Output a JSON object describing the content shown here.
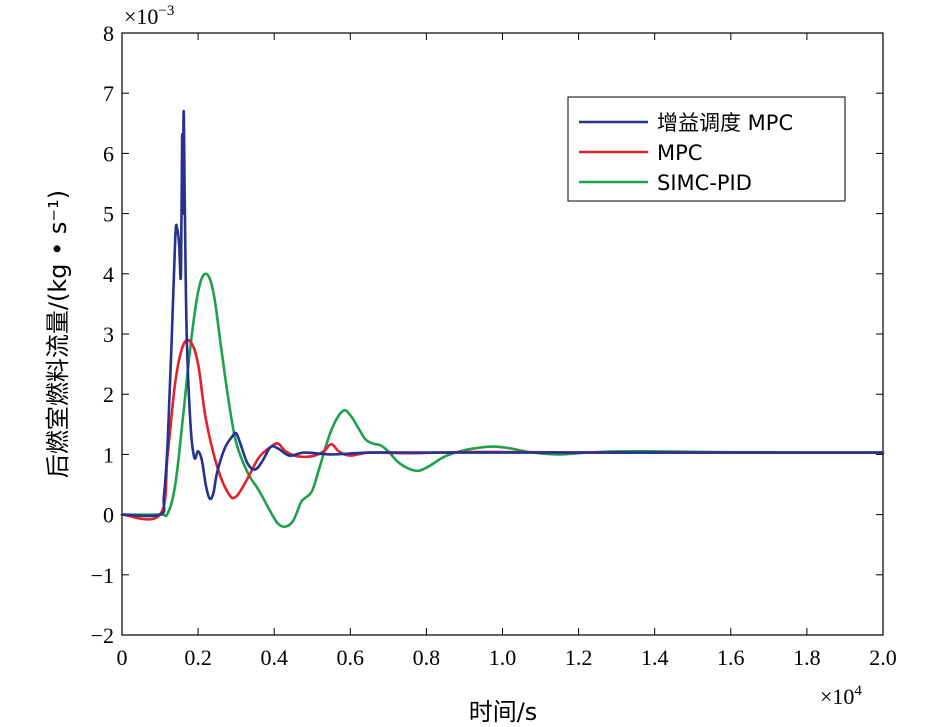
{
  "chart_data": {
    "type": "line",
    "xlabel": "时间/s",
    "ylabel": "后燃室燃料流量/(kg • s⁻¹)",
    "x_multiplier": {
      "base": "×10",
      "exp": "4"
    },
    "y_multiplier": {
      "base": "×10",
      "exp": "−3"
    },
    "xlim": [
      0,
      2.0
    ],
    "ylim": [
      -2,
      8
    ],
    "x_ticks": [
      "0",
      "0.2",
      "0.4",
      "0.6",
      "0.8",
      "1.0",
      "1.2",
      "1.4",
      "1.6",
      "1.8",
      "2.0"
    ],
    "y_ticks": [
      "−2",
      "−1",
      "0",
      "1",
      "2",
      "3",
      "4",
      "5",
      "6",
      "7",
      "8"
    ],
    "legend_position": "top-right",
    "grid": false,
    "series": [
      {
        "name": "增益调度 MPC",
        "color": "#27318f",
        "points": [
          [
            0,
            0
          ],
          [
            0.1,
            0
          ],
          [
            0.11,
            0.3
          ],
          [
            0.12,
            1.2
          ],
          [
            0.13,
            2.8
          ],
          [
            0.14,
            4.6
          ],
          [
            0.145,
            4.75
          ],
          [
            0.15,
            4.5
          ],
          [
            0.155,
            4.0
          ],
          [
            0.158,
            6.3
          ],
          [
            0.16,
            5.0
          ],
          [
            0.162,
            6.7
          ],
          [
            0.165,
            5.2
          ],
          [
            0.17,
            3.0
          ],
          [
            0.18,
            1.5
          ],
          [
            0.19,
            0.95
          ],
          [
            0.2,
            1.05
          ],
          [
            0.21,
            0.9
          ],
          [
            0.22,
            0.5
          ],
          [
            0.23,
            0.27
          ],
          [
            0.24,
            0.35
          ],
          [
            0.25,
            0.7
          ],
          [
            0.27,
            1.1
          ],
          [
            0.29,
            1.3
          ],
          [
            0.3,
            1.35
          ],
          [
            0.31,
            1.2
          ],
          [
            0.33,
            0.85
          ],
          [
            0.35,
            0.75
          ],
          [
            0.37,
            0.9
          ],
          [
            0.39,
            1.12
          ],
          [
            0.41,
            1.1
          ],
          [
            0.44,
            0.98
          ],
          [
            0.48,
            1.03
          ],
          [
            0.55,
            1.0
          ],
          [
            0.65,
            1.03
          ],
          [
            0.8,
            1.03
          ],
          [
            1.0,
            1.03
          ],
          [
            1.3,
            1.03
          ],
          [
            1.6,
            1.03
          ],
          [
            2.0,
            1.03
          ]
        ]
      },
      {
        "name": "MPC",
        "color": "#e2202f",
        "points": [
          [
            0,
            0
          ],
          [
            0.1,
            0
          ],
          [
            0.12,
            1.0
          ],
          [
            0.14,
            2.2
          ],
          [
            0.16,
            2.8
          ],
          [
            0.18,
            2.87
          ],
          [
            0.2,
            2.5
          ],
          [
            0.22,
            1.6
          ],
          [
            0.25,
            0.8
          ],
          [
            0.28,
            0.35
          ],
          [
            0.3,
            0.3
          ],
          [
            0.33,
            0.6
          ],
          [
            0.36,
            0.95
          ],
          [
            0.39,
            1.12
          ],
          [
            0.41,
            1.18
          ],
          [
            0.43,
            1.05
          ],
          [
            0.46,
            0.97
          ],
          [
            0.5,
            0.97
          ],
          [
            0.53,
            1.05
          ],
          [
            0.55,
            1.17
          ],
          [
            0.57,
            1.05
          ],
          [
            0.6,
            0.98
          ],
          [
            0.65,
            1.03
          ],
          [
            0.75,
            1.02
          ],
          [
            0.9,
            1.04
          ],
          [
            1.0,
            1.04
          ],
          [
            1.3,
            1.03
          ],
          [
            1.6,
            1.03
          ],
          [
            2.0,
            1.03
          ]
        ]
      },
      {
        "name": "SIMC-PID",
        "color": "#1fa04a",
        "points": [
          [
            0,
            0
          ],
          [
            0.1,
            0
          ],
          [
            0.12,
            0.02
          ],
          [
            0.14,
            0.5
          ],
          [
            0.16,
            1.6
          ],
          [
            0.18,
            2.8
          ],
          [
            0.2,
            3.7
          ],
          [
            0.22,
            4.0
          ],
          [
            0.24,
            3.7
          ],
          [
            0.26,
            2.8
          ],
          [
            0.28,
            1.9
          ],
          [
            0.3,
            1.2
          ],
          [
            0.33,
            0.7
          ],
          [
            0.36,
            0.4
          ],
          [
            0.39,
            0.05
          ],
          [
            0.41,
            -0.15
          ],
          [
            0.43,
            -0.2
          ],
          [
            0.45,
            -0.1
          ],
          [
            0.47,
            0.2
          ],
          [
            0.48,
            0.27
          ],
          [
            0.5,
            0.4
          ],
          [
            0.52,
            0.8
          ],
          [
            0.55,
            1.4
          ],
          [
            0.58,
            1.72
          ],
          [
            0.6,
            1.65
          ],
          [
            0.62,
            1.45
          ],
          [
            0.64,
            1.25
          ],
          [
            0.66,
            1.18
          ],
          [
            0.68,
            1.15
          ],
          [
            0.7,
            1.05
          ],
          [
            0.73,
            0.85
          ],
          [
            0.77,
            0.73
          ],
          [
            0.8,
            0.78
          ],
          [
            0.85,
            0.97
          ],
          [
            0.9,
            1.07
          ],
          [
            0.95,
            1.12
          ],
          [
            0.98,
            1.13
          ],
          [
            1.02,
            1.1
          ],
          [
            1.08,
            1.03
          ],
          [
            1.15,
            1.0
          ],
          [
            1.22,
            1.03
          ],
          [
            1.3,
            1.05
          ],
          [
            1.4,
            1.05
          ],
          [
            1.55,
            1.04
          ],
          [
            1.75,
            1.03
          ],
          [
            2.0,
            1.03
          ]
        ]
      }
    ]
  }
}
